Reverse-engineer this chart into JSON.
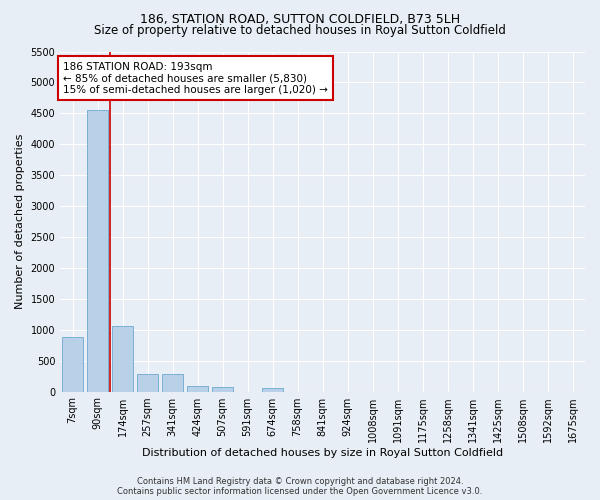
{
  "title": "186, STATION ROAD, SUTTON COLDFIELD, B73 5LH",
  "subtitle": "Size of property relative to detached houses in Royal Sutton Coldfield",
  "xlabel": "Distribution of detached houses by size in Royal Sutton Coldfield",
  "ylabel": "Number of detached properties",
  "footer_line1": "Contains HM Land Registry data © Crown copyright and database right 2024.",
  "footer_line2": "Contains public sector information licensed under the Open Government Licence v3.0.",
  "bar_labels": [
    "7sqm",
    "90sqm",
    "174sqm",
    "257sqm",
    "341sqm",
    "424sqm",
    "507sqm",
    "591sqm",
    "674sqm",
    "758sqm",
    "841sqm",
    "924sqm",
    "1008sqm",
    "1091sqm",
    "1175sqm",
    "1258sqm",
    "1341sqm",
    "1425sqm",
    "1508sqm",
    "1592sqm",
    "1675sqm"
  ],
  "bar_values": [
    880,
    4550,
    1060,
    285,
    285,
    85,
    80,
    0,
    55,
    0,
    0,
    0,
    0,
    0,
    0,
    0,
    0,
    0,
    0,
    0,
    0
  ],
  "bar_color": "#b8d0e8",
  "bar_edge_color": "#7aafd4",
  "annotation_line1": "186 STATION ROAD: 193sqm",
  "annotation_line2": "← 85% of detached houses are smaller (5,830)",
  "annotation_line3": "15% of semi-detached houses are larger (1,020) →",
  "vline_color": "#cc0000",
  "ylim": [
    0,
    5500
  ],
  "yticks": [
    0,
    500,
    1000,
    1500,
    2000,
    2500,
    3000,
    3500,
    4000,
    4500,
    5000,
    5500
  ],
  "bg_color": "#e8eef5",
  "plot_bg_color": "#e8eef5",
  "annotation_box_color": "#ffffff",
  "annotation_box_edge": "#cc0000",
  "title_fontsize": 9,
  "subtitle_fontsize": 8.5,
  "xlabel_fontsize": 8,
  "ylabel_fontsize": 8,
  "tick_fontsize": 7,
  "annotation_fontsize": 7.5,
  "footer_fontsize": 6
}
